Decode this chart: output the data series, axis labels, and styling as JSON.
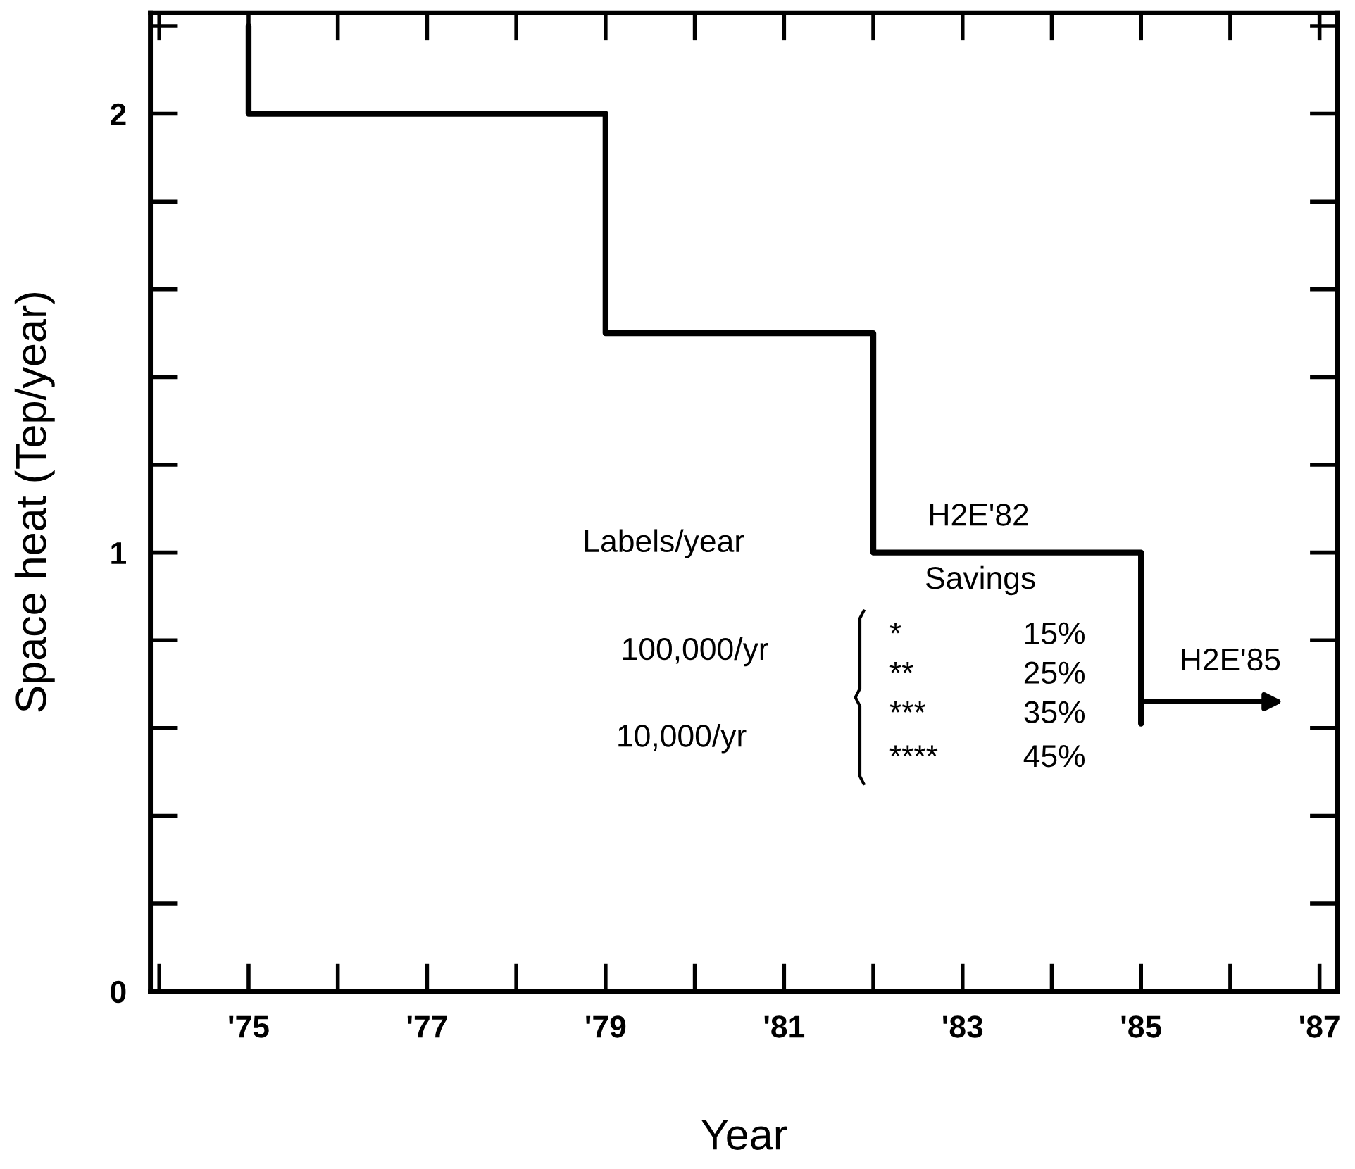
{
  "chart_data": {
    "type": "line",
    "xlabel": "Year",
    "ylabel": "Space heat (Tep/year)",
    "x": [
      75,
      75,
      79,
      79,
      82,
      82,
      85,
      85
    ],
    "series": [
      {
        "color": "#000000",
        "values": [
          2.2,
          2,
          2,
          1.5,
          1.5,
          1,
          1,
          0.61
        ]
      }
    ],
    "xlim": [
      73.9,
      87.2
    ],
    "ylim": [
      0,
      2.23
    ],
    "xticks": [
      {
        "value": 75,
        "label": "'75"
      },
      {
        "value": 77,
        "label": "'77"
      },
      {
        "value": 79,
        "label": "'79"
      },
      {
        "value": 81,
        "label": "'81"
      },
      {
        "value": 83,
        "label": "'83"
      },
      {
        "value": 85,
        "label": "'85"
      },
      {
        "value": 87,
        "label": "'87"
      }
    ],
    "yticks": [
      0,
      1,
      2
    ],
    "grid": false,
    "legend": false,
    "marker": "none",
    "line_style": "solid",
    "annotations": [
      "H2E'82",
      "H2E'85",
      "Labels/year",
      "Savings",
      "100,000/yr",
      "10,000/yr",
      "*",
      "**",
      "***",
      "****",
      "15%",
      "25%",
      "35%",
      "45%"
    ]
  }
}
